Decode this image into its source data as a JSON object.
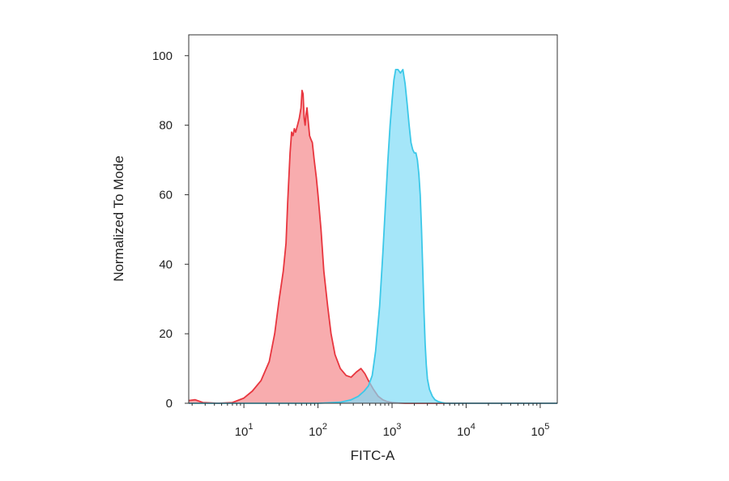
{
  "chart_data": {
    "type": "area",
    "title": "",
    "xlabel": "FITC-A",
    "ylabel": "Normalized To Mode",
    "x_scale": "log",
    "xlim": [
      1.8,
      170000
    ],
    "ylim": [
      0,
      106
    ],
    "grid": false,
    "legend": "none",
    "x_ticks": [
      {
        "value": 10,
        "base": "10",
        "exp": "1"
      },
      {
        "value": 100,
        "base": "10",
        "exp": "2"
      },
      {
        "value": 1000,
        "base": "10",
        "exp": "3"
      },
      {
        "value": 10000,
        "base": "10",
        "exp": "4"
      },
      {
        "value": 100000,
        "base": "10",
        "exp": "5"
      }
    ],
    "y_ticks": [
      0,
      20,
      40,
      60,
      80,
      100
    ],
    "series": [
      {
        "color": "#e8363f",
        "fill": "#f5898c",
        "x": [
          1.8,
          2.2,
          2.8,
          4.5,
          7,
          10,
          13,
          17,
          22,
          26,
          30,
          34,
          37,
          39,
          42,
          44,
          46,
          48,
          50,
          53,
          56,
          59,
          61,
          63,
          65,
          67,
          69,
          71,
          74,
          77,
          80,
          84,
          89,
          95,
          100,
          110,
          120,
          135,
          150,
          170,
          200,
          240,
          280,
          330,
          380,
          430,
          480,
          560,
          650,
          750,
          860,
          1000,
          1200,
          1500,
          2000,
          3000,
          10000,
          170000
        ],
        "y": [
          0.8,
          1.0,
          0.2,
          0,
          0.2,
          1.5,
          3.5,
          6.5,
          12,
          20,
          30,
          38,
          46,
          58,
          72,
          78,
          77,
          79,
          78,
          80,
          82,
          85,
          90,
          89,
          82,
          80,
          83,
          85,
          81,
          77,
          76,
          75,
          70,
          65,
          60,
          50,
          38,
          28,
          20,
          14,
          10,
          8,
          7.5,
          9,
          10,
          8.5,
          6.5,
          4,
          2,
          1,
          0.5,
          0.2,
          0.1,
          0,
          0,
          0,
          0,
          0
        ]
      },
      {
        "color": "#3cc8e8",
        "fill": "#7fdcf6",
        "x": [
          1.8,
          100,
          200,
          280,
          350,
          420,
          480,
          540,
          600,
          680,
          750,
          820,
          880,
          940,
          1000,
          1060,
          1120,
          1200,
          1300,
          1400,
          1500,
          1600,
          1700,
          1800,
          1900,
          2000,
          2100,
          2200,
          2300,
          2400,
          2500,
          2600,
          2700,
          2800,
          2900,
          3000,
          3200,
          3500,
          3800,
          4200,
          4700,
          5300,
          6000,
          7000,
          10000,
          170000
        ],
        "y": [
          0,
          0,
          0.3,
          1,
          2,
          3.5,
          5,
          8,
          15,
          28,
          43,
          58,
          70,
          80,
          87,
          93,
          96,
          96,
          95,
          96,
          92,
          86,
          80,
          75,
          73,
          72,
          72,
          70,
          66,
          60,
          50,
          38,
          26,
          17,
          11,
          7,
          4,
          2,
          1,
          0.5,
          0.2,
          0,
          0,
          0,
          0,
          0
        ]
      }
    ]
  }
}
